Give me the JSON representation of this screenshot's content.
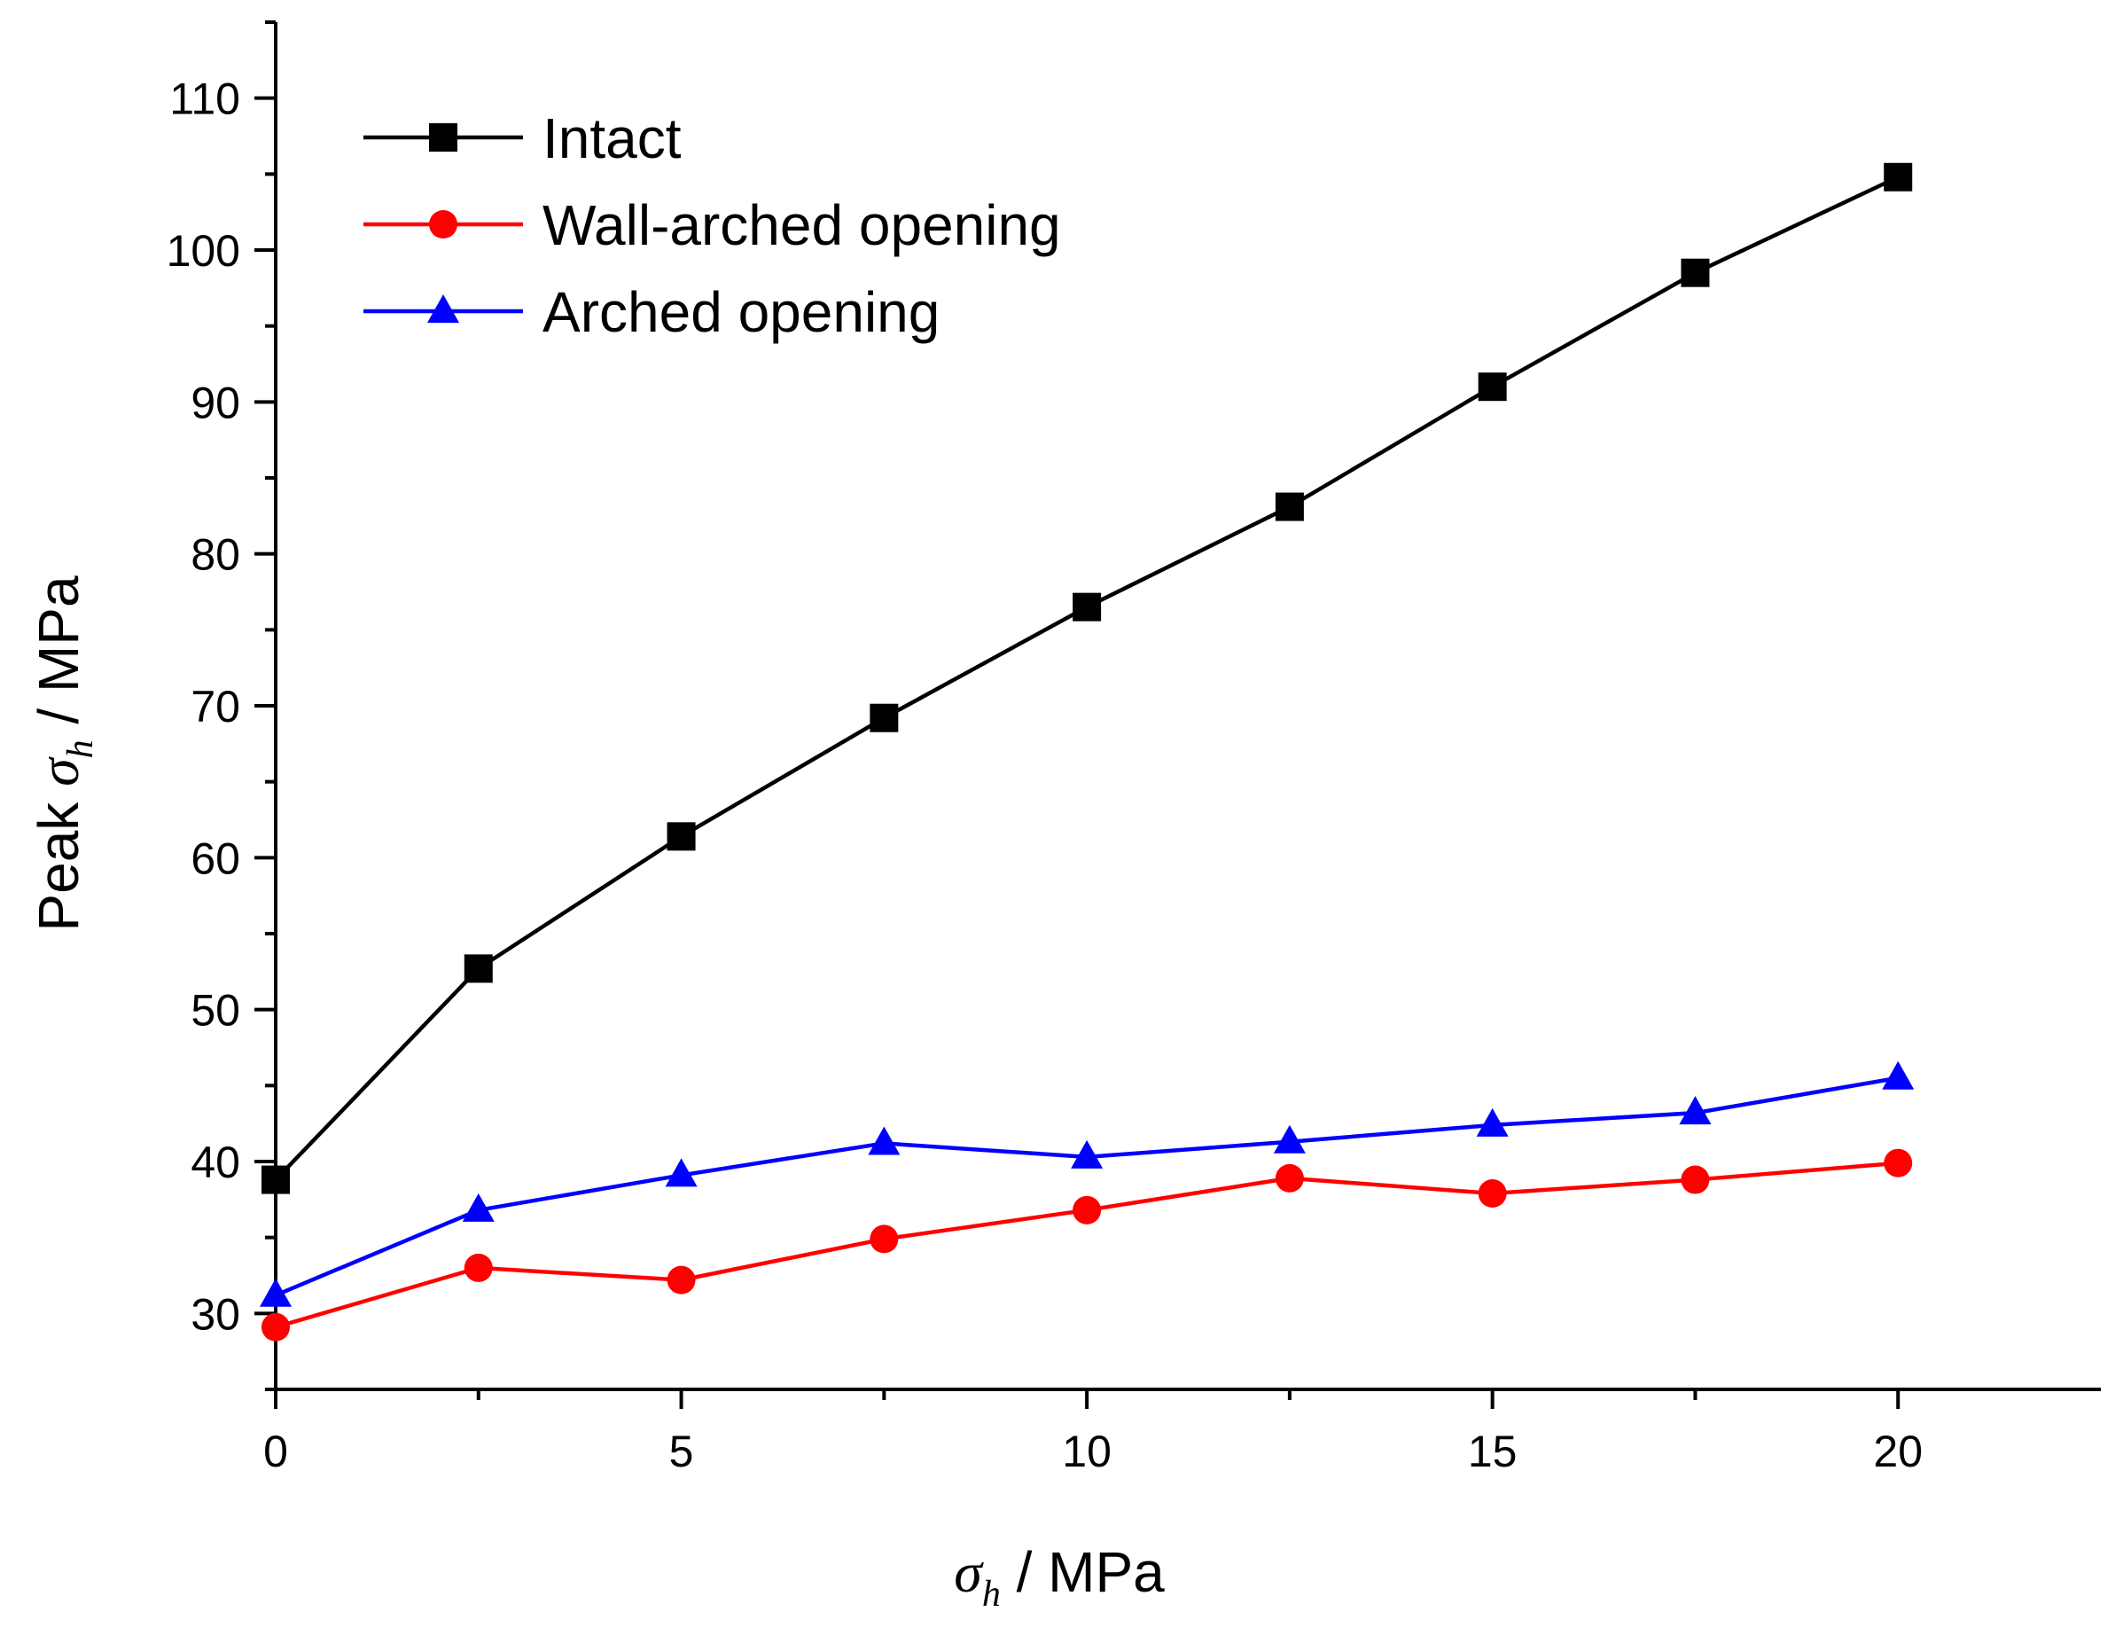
{
  "chart_data": {
    "type": "line",
    "title": "",
    "xlabel": {
      "symbol": "σ",
      "subscript": "h",
      "unit_text": " / MPa"
    },
    "ylabel": {
      "prefix": "Peak ",
      "symbol": "σ",
      "subscript": "h",
      "unit_text": " / MPa"
    },
    "xlim": [
      0,
      22.5
    ],
    "ylim": [
      25,
      115
    ],
    "x_ticks": [
      0,
      5,
      10,
      15,
      20
    ],
    "x_tick_labels": [
      "0",
      "5",
      "10",
      "15",
      "20"
    ],
    "x_minor_ticks": [
      2.5,
      7.5,
      12.5,
      17.5
    ],
    "y_ticks": [
      30,
      40,
      50,
      60,
      70,
      80,
      90,
      100,
      110
    ],
    "y_tick_labels": [
      "30",
      "40",
      "50",
      "60",
      "70",
      "80",
      "90",
      "100",
      "110"
    ],
    "y_minor_ticks": [
      25,
      35,
      45,
      55,
      65,
      75,
      85,
      95,
      105,
      115
    ],
    "grid": false,
    "legend_position": "top-left",
    "x": [
      0,
      2.5,
      5,
      7.5,
      10,
      12.5,
      15,
      17.5,
      20
    ],
    "series": [
      {
        "name": "Intact",
        "color": "#000000",
        "marker": "square",
        "values": [
          38.8,
          52.7,
          61.4,
          69.2,
          76.5,
          83.1,
          91.0,
          98.5,
          104.8
        ]
      },
      {
        "name": "Wall-arched opening",
        "color": "#ff0000",
        "marker": "circle",
        "values": [
          29.1,
          33.0,
          32.2,
          34.9,
          36.8,
          38.9,
          37.9,
          38.8,
          39.9
        ]
      },
      {
        "name": "Arched opening",
        "color": "#0000ff",
        "marker": "triangle",
        "values": [
          31.2,
          36.8,
          39.1,
          41.2,
          40.3,
          41.3,
          42.4,
          43.2,
          45.5
        ]
      }
    ]
  }
}
